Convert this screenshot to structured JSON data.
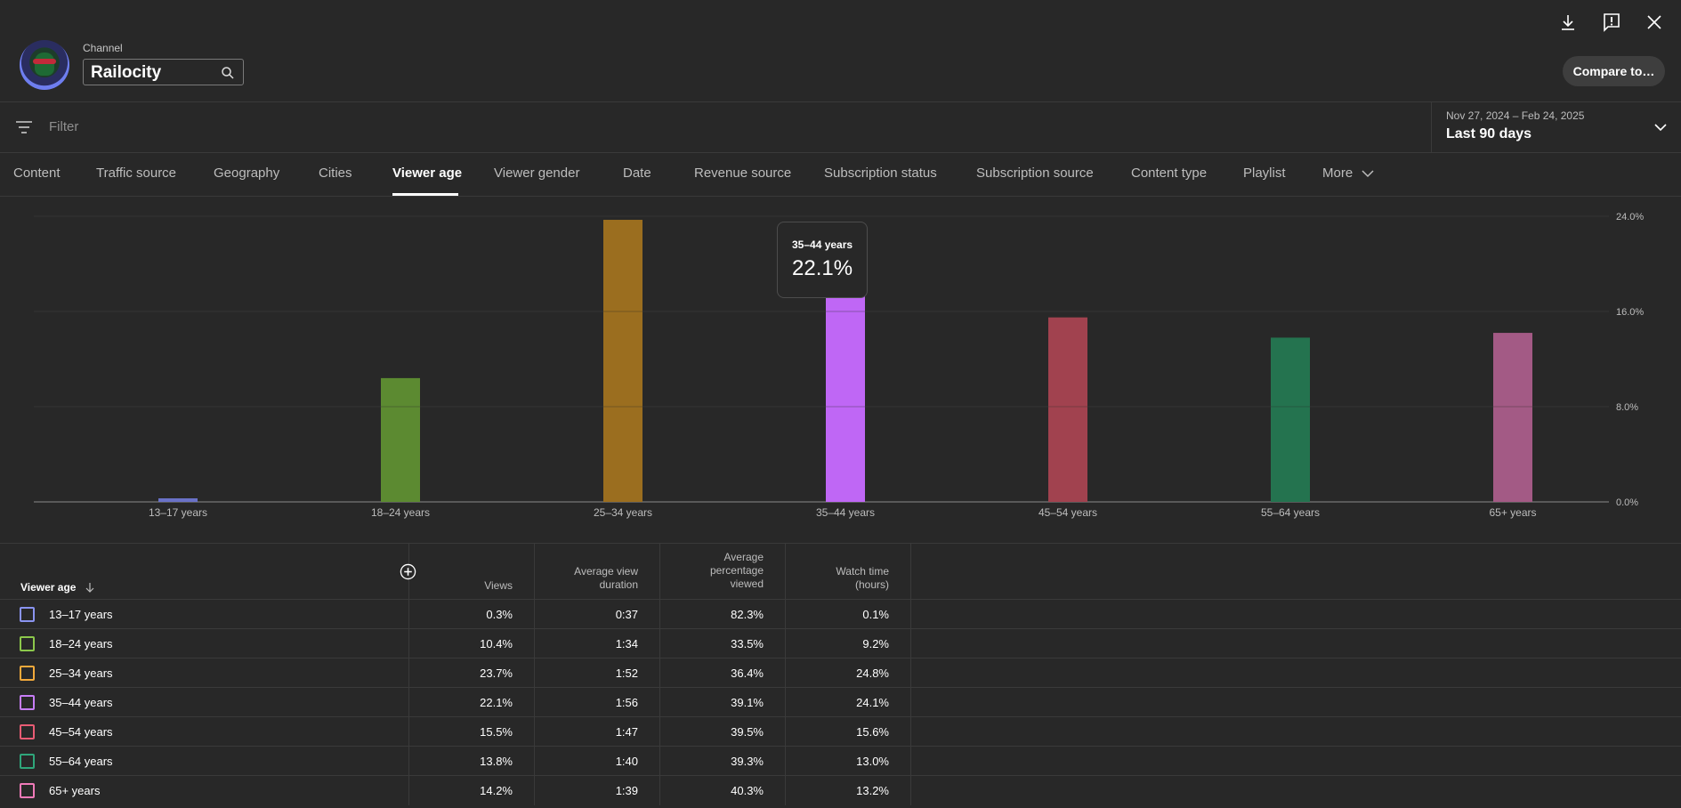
{
  "header": {
    "channel_label": "Channel",
    "channel_name": "Railocity",
    "compare_label": "Compare to…"
  },
  "filter": {
    "placeholder": "Filter",
    "date_range": "Nov 27, 2024 – Feb 24, 2025",
    "period_label": "Last 90 days"
  },
  "tabs": [
    {
      "label": "Content",
      "active": false
    },
    {
      "label": "Traffic source",
      "active": false
    },
    {
      "label": "Geography",
      "active": false
    },
    {
      "label": "Cities",
      "active": false
    },
    {
      "label": "Viewer age",
      "active": true
    },
    {
      "label": "Viewer gender",
      "active": false
    },
    {
      "label": "Date",
      "active": false
    },
    {
      "label": "Revenue source",
      "active": false
    },
    {
      "label": "Subscription status",
      "active": false
    },
    {
      "label": "Subscription source",
      "active": false
    },
    {
      "label": "Content type",
      "active": false
    },
    {
      "label": "Playlist",
      "active": false
    },
    {
      "label": "More",
      "active": false
    }
  ],
  "tooltip": {
    "title": "35–44 years",
    "value": "22.1%"
  },
  "chart_data": {
    "type": "bar",
    "categories": [
      "13–17 years",
      "18–24 years",
      "25–34 years",
      "35–44 years",
      "45–54 years",
      "55–64 years",
      "65+ years"
    ],
    "values": [
      0.3,
      10.4,
      23.7,
      22.1,
      15.5,
      13.8,
      14.2
    ],
    "colors": [
      "#6a72c8",
      "#5c8a31",
      "#9b6e1f",
      "#bf67f5",
      "#a1424f",
      "#24734f",
      "#a35a85"
    ],
    "ylim": [
      0,
      24
    ],
    "yticks": [
      "0.0%",
      "8.0%",
      "16.0%",
      "24.0%"
    ],
    "grid": true
  },
  "table": {
    "headers": {
      "dimension": "Viewer age",
      "views": "Views",
      "avg_duration": [
        "Average view",
        "duration"
      ],
      "avg_pct": [
        "Average",
        "percentage",
        "viewed"
      ],
      "watch_time": [
        "Watch time",
        "(hours)"
      ]
    },
    "rows": [
      {
        "label": "13–17 years",
        "views": "0.3%",
        "duration": "0:37",
        "pct": "82.3%",
        "watch": "0.1%",
        "color": "#8a94f0"
      },
      {
        "label": "18–24 years",
        "views": "10.4%",
        "duration": "1:34",
        "pct": "33.5%",
        "watch": "9.2%",
        "color": "#8cc84b"
      },
      {
        "label": "25–34 years",
        "views": "23.7%",
        "duration": "1:52",
        "pct": "36.4%",
        "watch": "24.8%",
        "color": "#f2a93b"
      },
      {
        "label": "35–44 years",
        "views": "22.1%",
        "duration": "1:56",
        "pct": "39.1%",
        "watch": "24.1%",
        "color": "#c77df7"
      },
      {
        "label": "45–54 years",
        "views": "15.5%",
        "duration": "1:47",
        "pct": "39.5%",
        "watch": "15.6%",
        "color": "#e95c74"
      },
      {
        "label": "55–64 years",
        "views": "13.8%",
        "duration": "1:40",
        "pct": "39.3%",
        "watch": "13.0%",
        "color": "#2fa67a"
      },
      {
        "label": "65+ years",
        "views": "14.2%",
        "duration": "1:39",
        "pct": "40.3%",
        "watch": "13.2%",
        "color": "#f07ab8"
      }
    ]
  }
}
